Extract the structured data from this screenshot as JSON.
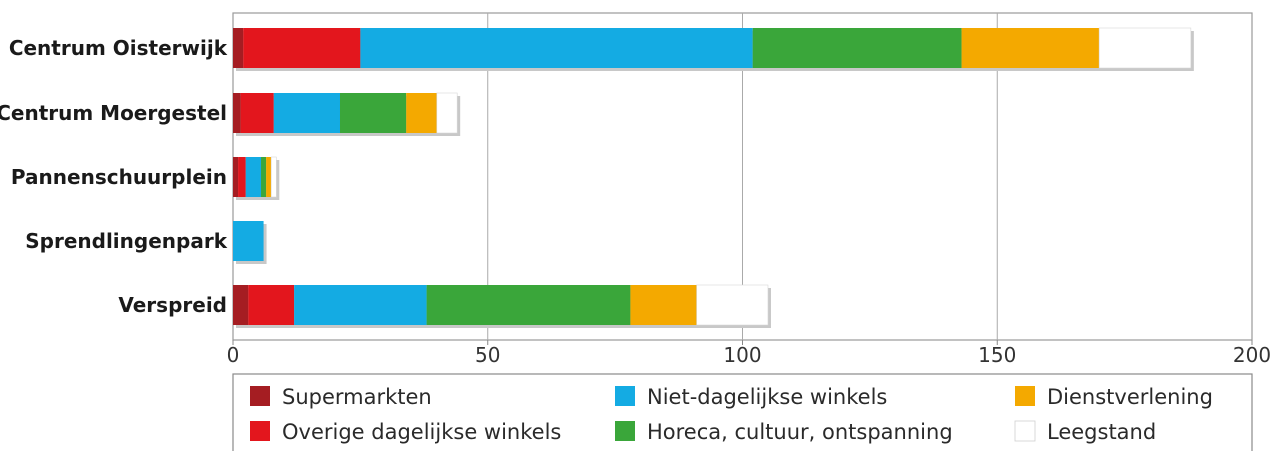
{
  "chart_data": {
    "type": "bar",
    "orientation": "horizontal",
    "stacked": true,
    "categories": [
      "Centrum Oisterwijk",
      "Centrum Moergestel",
      "Pannenschuurplein",
      "Sprendlingenpark",
      "Verspreid"
    ],
    "series": [
      {
        "name": "Supermarkten",
        "color": "#a51d22",
        "values": [
          2,
          1.5,
          1,
          0,
          3
        ]
      },
      {
        "name": "Overige dagelijkse winkels",
        "color": "#e3161d",
        "values": [
          23,
          6.5,
          1.5,
          0,
          9
        ]
      },
      {
        "name": "Niet-dagelijkse winkels",
        "color": "#14abe3",
        "values": [
          77,
          13,
          3,
          6,
          26
        ]
      },
      {
        "name": "Horeca, cultuur, ontspanning",
        "color": "#3aa63a",
        "values": [
          41,
          13,
          1,
          0,
          40
        ]
      },
      {
        "name": "Dienstverlening",
        "color": "#f4a900",
        "values": [
          27,
          6,
          1,
          0,
          13
        ]
      },
      {
        "name": "Leegstand",
        "color": "#ffffff",
        "values": [
          18,
          4,
          1,
          0,
          14
        ]
      }
    ],
    "xlim": [
      0,
      200
    ],
    "xticks": [
      0,
      50,
      100,
      150,
      200
    ],
    "grid": true,
    "legend_position": "bottom",
    "title": "",
    "xlabel": "",
    "ylabel": ""
  }
}
